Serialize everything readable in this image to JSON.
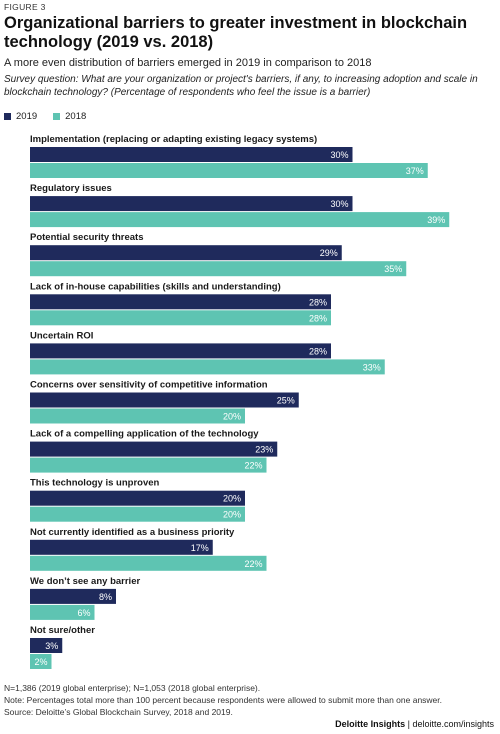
{
  "figure_label": "FIGURE 3",
  "title": "Organizational barriers to greater investment in blockchain technology (2019 vs. 2018)",
  "subtitle": "A more even distribution of barriers emerged in 2019 in comparison to 2018",
  "survey_question": "Survey question: What are your organization or project's barriers, if any, to increasing adoption and scale in blockchain technology? (Percentage of respondents who feel the issue is a barrier)",
  "legend": [
    {
      "label": "2019",
      "color": "#1f2a5c"
    },
    {
      "label": "2018",
      "color": "#5ec4b2"
    }
  ],
  "chart_data": {
    "type": "bar",
    "orientation": "horizontal",
    "categories": [
      "Implementation (replacing or adapting existing legacy systems)",
      "Regulatory issues",
      "Potential security threats",
      "Lack of in-house capabilities (skills and understanding)",
      "Uncertain ROI",
      "Concerns over sensitivity of competitive information",
      "Lack of a compelling application of the technology",
      "This technology is unproven",
      "Not currently identified as a business priority",
      "We don’t see any barrier",
      "Not sure/other"
    ],
    "series": [
      {
        "name": "2019",
        "color": "#1f2a5c",
        "values": [
          30,
          30,
          29,
          28,
          28,
          25,
          23,
          20,
          17,
          8,
          3
        ],
        "labels": [
          "30%",
          "30%",
          "29%",
          "28%",
          "28%",
          "25%",
          "23%",
          "20%",
          "17%",
          "8%",
          "3%"
        ]
      },
      {
        "name": "2018",
        "color": "#5ec4b2",
        "values": [
          37,
          39,
          35,
          28,
          33,
          20,
          22,
          20,
          22,
          6,
          2
        ],
        "labels": [
          "37%",
          "39%",
          "35%",
          "28%",
          "33%",
          "20%",
          "22%",
          "20%",
          "22%",
          "6%",
          "2%"
        ]
      }
    ],
    "xlim": [
      0,
      40
    ],
    "grid": false,
    "legend_position": "top-left"
  },
  "footer": {
    "note1": "N=1,386 (2019 global enterprise); N=1,053 (2018 global enterprise).",
    "note2": "Note: Percentages total more than 100 percent because respondents were allowed to submit more than one answer.",
    "source": "Source: Deloitte’s Global Blockchain Survey, 2018 and 2019."
  },
  "brand": {
    "name": "Deloitte Insights",
    "separator": " | ",
    "url": "deloitte.com/insights"
  }
}
